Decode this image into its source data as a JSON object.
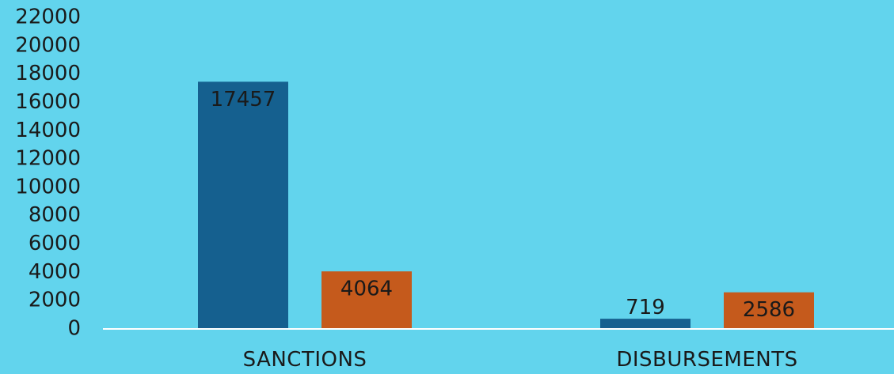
{
  "colors": {
    "background": "#62d4ed",
    "series_1": "#15608f",
    "series_2": "#c55a1c",
    "axis_line": "#ffffff"
  },
  "chart_data": {
    "type": "bar",
    "title": "",
    "xlabel": "",
    "ylabel": "",
    "categories": [
      "SANCTIONS",
      "DISBURSEMENTS"
    ],
    "series": [
      {
        "values": [
          17457,
          719
        ],
        "color": "#15608f"
      },
      {
        "values": [
          4064,
          2586
        ],
        "color": "#c55a1c"
      }
    ],
    "ylim": [
      0,
      22000
    ],
    "yticks": [
      0,
      2000,
      4000,
      6000,
      8000,
      10000,
      12000,
      14000,
      16000,
      18000,
      20000,
      22000
    ],
    "data_labels": true,
    "grid": false,
    "legend": "none"
  }
}
